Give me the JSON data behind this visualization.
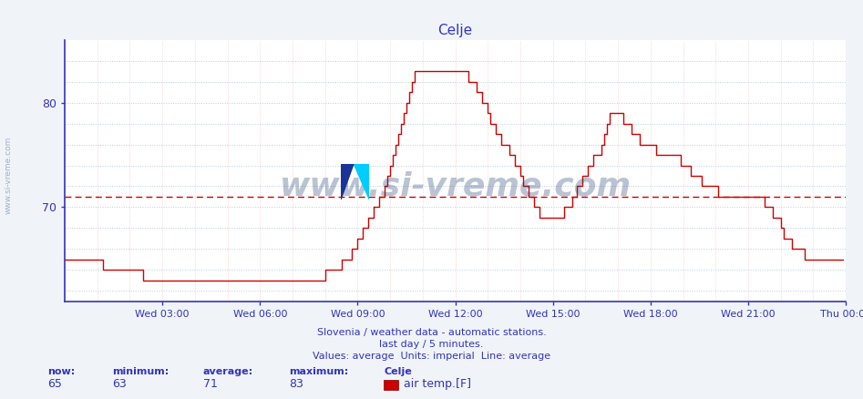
{
  "title": "Celje",
  "title_color": "#3333cc",
  "bg_color": "#f0f4f8",
  "plot_bg_color": "#ffffff",
  "line_color": "#cc0000",
  "average_line_color": "#cc0000",
  "average_value": 71,
  "xlabel_ticks": [
    "Wed 03:00",
    "Wed 06:00",
    "Wed 09:00",
    "Wed 12:00",
    "Wed 15:00",
    "Wed 18:00",
    "Wed 21:00",
    "Thu 00:00"
  ],
  "xtick_positions": [
    36,
    72,
    108,
    144,
    180,
    216,
    252,
    288
  ],
  "xlim": [
    0,
    288
  ],
  "ylim": [
    61,
    86
  ],
  "yticks": [
    70,
    80
  ],
  "footer_line1": "Slovenia / weather data - automatic stations.",
  "footer_line2": "last day / 5 minutes.",
  "footer_line3": "Values: average  Units: imperial  Line: average",
  "legend_now": "65",
  "legend_min": "63",
  "legend_avg": "71",
  "legend_max": "83",
  "legend_station": "Celje",
  "legend_series": "air temp.[F]",
  "axis_color": "#3333bb",
  "grid_h_color": "#bbccdd",
  "vgrid_color": "#dd9999",
  "ylabel_text": "www.si-vreme.com",
  "temperature_data": [
    65,
    65,
    65,
    65,
    65,
    65,
    65,
    65,
    65,
    65,
    65,
    65,
    65,
    65,
    64,
    64,
    64,
    64,
    64,
    64,
    64,
    64,
    64,
    64,
    64,
    64,
    64,
    64,
    64,
    63,
    63,
    63,
    63,
    63,
    63,
    63,
    63,
    63,
    63,
    63,
    63,
    63,
    63,
    63,
    63,
    63,
    63,
    63,
    63,
    63,
    63,
    63,
    63,
    63,
    63,
    63,
    63,
    63,
    63,
    63,
    63,
    63,
    63,
    63,
    63,
    63,
    63,
    63,
    63,
    63,
    63,
    63,
    63,
    63,
    63,
    63,
    63,
    63,
    63,
    63,
    63,
    63,
    63,
    63,
    63,
    63,
    63,
    63,
    63,
    63,
    63,
    63,
    63,
    63,
    63,
    63,
    64,
    64,
    64,
    64,
    64,
    64,
    65,
    65,
    65,
    65,
    66,
    66,
    67,
    67,
    68,
    68,
    69,
    69,
    70,
    70,
    71,
    71,
    72,
    73,
    74,
    75,
    76,
    77,
    78,
    79,
    80,
    81,
    82,
    83,
    83,
    83,
    83,
    83,
    83,
    83,
    83,
    83,
    83,
    83,
    83,
    83,
    83,
    83,
    83,
    83,
    83,
    83,
    83,
    82,
    82,
    82,
    81,
    81,
    80,
    80,
    79,
    78,
    78,
    77,
    77,
    76,
    76,
    76,
    75,
    75,
    74,
    74,
    73,
    72,
    72,
    71,
    71,
    70,
    70,
    69,
    69,
    69,
    69,
    69,
    69,
    69,
    69,
    69,
    70,
    70,
    70,
    71,
    71,
    72,
    72,
    73,
    73,
    74,
    74,
    75,
    75,
    75,
    76,
    77,
    78,
    79,
    79,
    79,
    79,
    79,
    78,
    78,
    78,
    77,
    77,
    77,
    76,
    76,
    76,
    76,
    76,
    76,
    75,
    75,
    75,
    75,
    75,
    75,
    75,
    75,
    75,
    74,
    74,
    74,
    74,
    73,
    73,
    73,
    73,
    72,
    72,
    72,
    72,
    72,
    72,
    71,
    71,
    71,
    71,
    71,
    71,
    71,
    71,
    71,
    71,
    71,
    71,
    71,
    71,
    71,
    71,
    71,
    70,
    70,
    70,
    69,
    69,
    69,
    68,
    67,
    67,
    67,
    66,
    66,
    66,
    66,
    66,
    65,
    65,
    65,
    65,
    65,
    65,
    65,
    65,
    65,
    65,
    65,
    65,
    65,
    65,
    65
  ]
}
